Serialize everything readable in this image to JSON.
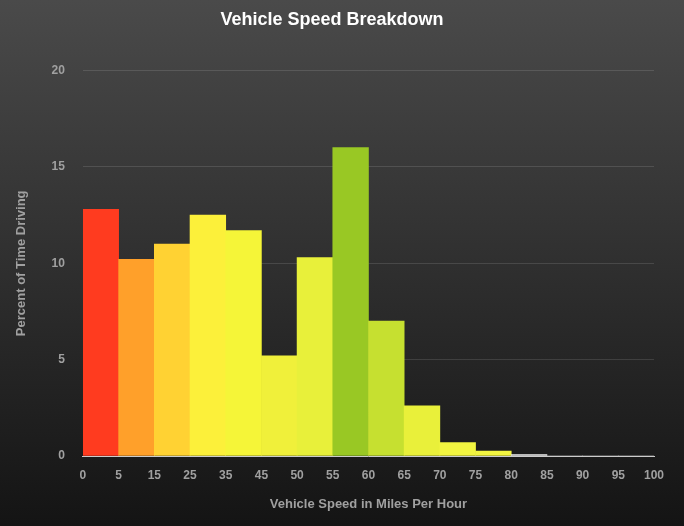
{
  "chart_data": {
    "type": "histogram",
    "title": "Vehicle Speed Breakdown",
    "x_label": "Vehicle Speed in Miles Per Hour",
    "y_label": "Percent of Time Driving",
    "bins": [
      0,
      5,
      15,
      25,
      35,
      45,
      50,
      55,
      60,
      65,
      70,
      75,
      80,
      85,
      90,
      95,
      100
    ],
    "values": [
      12.8,
      10.2,
      11.0,
      12.5,
      11.7,
      5.2,
      10.3,
      16.0,
      7.0,
      2.6,
      0.7,
      0.25,
      0.08,
      0,
      0,
      0
    ],
    "colors": [
      "#ff3b1f",
      "#ffa02a",
      "#ffd233",
      "#fcf03a",
      "#f5f538",
      "#f0f03a",
      "#e8f03a",
      "#99c824",
      "#c6e030",
      "#e9f03a",
      "#f2f540",
      "#f2f540",
      "#f0f0f0",
      "#f0f0f0",
      "#f0f0f0",
      "#f0f0f0"
    ],
    "ylim": [
      0,
      20
    ],
    "yticks": [
      0,
      5,
      10,
      15,
      20
    ],
    "grid": true
  }
}
